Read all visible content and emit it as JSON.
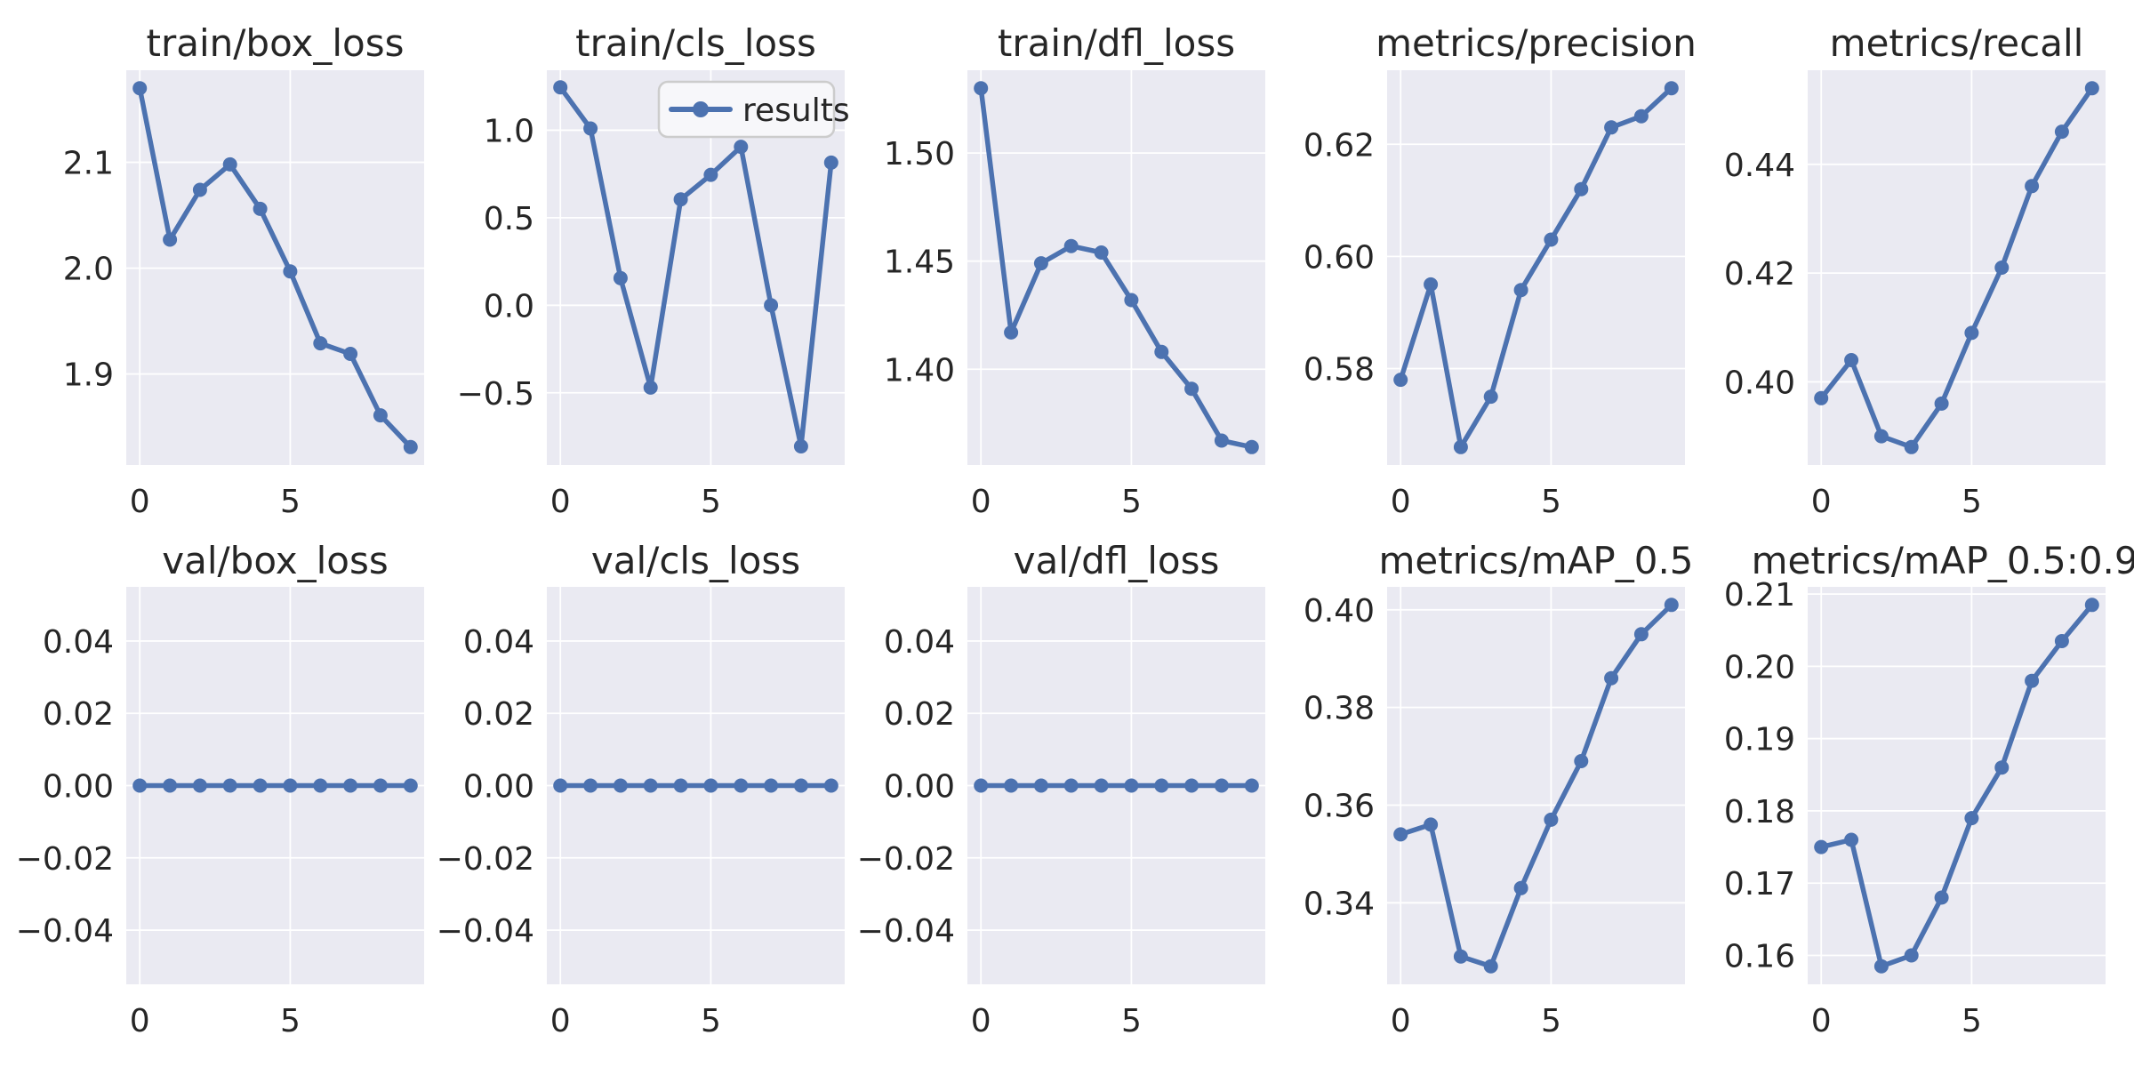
{
  "figure": {
    "colors": {
      "background": "#ffffff",
      "axes_background": "#eaeaf2",
      "grid": "#ffffff",
      "line": "#4c72b0",
      "marker": "#4c72b0",
      "text": "#262626",
      "legend_face": "#f7f7fa",
      "legend_edge": "#cccccc"
    },
    "legend": {
      "label": "results"
    }
  },
  "chart_data": [
    {
      "type": "line",
      "title": "train/box_loss",
      "legend": false,
      "x": [
        0,
        1,
        2,
        3,
        4,
        5,
        6,
        7,
        8,
        9
      ],
      "y": [
        2.17,
        2.027,
        2.074,
        2.098,
        2.056,
        1.997,
        1.929,
        1.919,
        1.861,
        1.831
      ],
      "xlim": [
        -0.45,
        9.45
      ],
      "ylim": [
        1.814,
        2.187
      ],
      "xticks": [
        {
          "v": 0,
          "label": "0"
        },
        {
          "v": 5,
          "label": "5"
        }
      ],
      "yticks": [
        {
          "v": 1.9,
          "label": "1.9"
        },
        {
          "v": 2.0,
          "label": "2.0"
        },
        {
          "v": 2.1,
          "label": "2.1"
        }
      ]
    },
    {
      "type": "line",
      "title": "train/cls_loss",
      "legend": true,
      "x": [
        0,
        1,
        2,
        3,
        4,
        5,
        6,
        7,
        8,
        9
      ],
      "y": [
        1.245,
        1.01,
        0.155,
        -0.47,
        0.605,
        0.745,
        0.905,
        0.0,
        -0.806,
        0.815
      ],
      "xlim": [
        -0.45,
        9.45
      ],
      "ylim": [
        -0.9125,
        1.3425
      ],
      "xticks": [
        {
          "v": 0,
          "label": "0"
        },
        {
          "v": 5,
          "label": "5"
        }
      ],
      "yticks": [
        {
          "v": -0.5,
          "label": "−0.5"
        },
        {
          "v": 0.0,
          "label": "0.0"
        },
        {
          "v": 0.5,
          "label": "0.5"
        },
        {
          "v": 1.0,
          "label": "1.0"
        }
      ]
    },
    {
      "type": "line",
      "title": "train/dfl_loss",
      "legend": false,
      "x": [
        0,
        1,
        2,
        3,
        4,
        5,
        6,
        7,
        8,
        9
      ],
      "y": [
        1.53,
        1.417,
        1.449,
        1.457,
        1.454,
        1.432,
        1.408,
        1.391,
        1.367,
        1.364
      ],
      "xlim": [
        -0.45,
        9.45
      ],
      "ylim": [
        1.3557,
        1.5383
      ],
      "xticks": [
        {
          "v": 0,
          "label": "0"
        },
        {
          "v": 5,
          "label": "5"
        }
      ],
      "yticks": [
        {
          "v": 1.4,
          "label": "1.40"
        },
        {
          "v": 1.45,
          "label": "1.45"
        },
        {
          "v": 1.5,
          "label": "1.50"
        }
      ]
    },
    {
      "type": "line",
      "title": "metrics/precision",
      "legend": false,
      "x": [
        0,
        1,
        2,
        3,
        4,
        5,
        6,
        7,
        8,
        9
      ],
      "y": [
        0.578,
        0.595,
        0.566,
        0.575,
        0.594,
        0.603,
        0.612,
        0.623,
        0.625,
        0.63
      ],
      "xlim": [
        -0.45,
        9.45
      ],
      "ylim": [
        0.5628,
        0.6332
      ],
      "xticks": [
        {
          "v": 0,
          "label": "0"
        },
        {
          "v": 5,
          "label": "5"
        }
      ],
      "yticks": [
        {
          "v": 0.58,
          "label": "0.58"
        },
        {
          "v": 0.6,
          "label": "0.60"
        },
        {
          "v": 0.62,
          "label": "0.62"
        }
      ]
    },
    {
      "type": "line",
      "title": "metrics/recall",
      "legend": false,
      "x": [
        0,
        1,
        2,
        3,
        4,
        5,
        6,
        7,
        8,
        9
      ],
      "y": [
        0.397,
        0.404,
        0.39,
        0.388,
        0.396,
        0.409,
        0.421,
        0.436,
        0.446,
        0.454
      ],
      "xlim": [
        -0.45,
        9.45
      ],
      "ylim": [
        0.3847,
        0.4573
      ],
      "xticks": [
        {
          "v": 0,
          "label": "0"
        },
        {
          "v": 5,
          "label": "5"
        }
      ],
      "yticks": [
        {
          "v": 0.4,
          "label": "0.40"
        },
        {
          "v": 0.42,
          "label": "0.42"
        },
        {
          "v": 0.44,
          "label": "0.44"
        }
      ]
    },
    {
      "type": "line",
      "title": "val/box_loss",
      "legend": false,
      "x": [
        0,
        1,
        2,
        3,
        4,
        5,
        6,
        7,
        8,
        9
      ],
      "y": [
        0,
        0,
        0,
        0,
        0,
        0,
        0,
        0,
        0,
        0
      ],
      "xlim": [
        -0.45,
        9.45
      ],
      "ylim": [
        -0.055,
        0.055
      ],
      "xticks": [
        {
          "v": 0,
          "label": "0"
        },
        {
          "v": 5,
          "label": "5"
        }
      ],
      "yticks": [
        {
          "v": -0.04,
          "label": "−0.04"
        },
        {
          "v": -0.02,
          "label": "−0.02"
        },
        {
          "v": 0.0,
          "label": "0.00"
        },
        {
          "v": 0.02,
          "label": "0.02"
        },
        {
          "v": 0.04,
          "label": "0.04"
        }
      ]
    },
    {
      "type": "line",
      "title": "val/cls_loss",
      "legend": false,
      "x": [
        0,
        1,
        2,
        3,
        4,
        5,
        6,
        7,
        8,
        9
      ],
      "y": [
        0,
        0,
        0,
        0,
        0,
        0,
        0,
        0,
        0,
        0
      ],
      "xlim": [
        -0.45,
        9.45
      ],
      "ylim": [
        -0.055,
        0.055
      ],
      "xticks": [
        {
          "v": 0,
          "label": "0"
        },
        {
          "v": 5,
          "label": "5"
        }
      ],
      "yticks": [
        {
          "v": -0.04,
          "label": "−0.04"
        },
        {
          "v": -0.02,
          "label": "−0.02"
        },
        {
          "v": 0.0,
          "label": "0.00"
        },
        {
          "v": 0.02,
          "label": "0.02"
        },
        {
          "v": 0.04,
          "label": "0.04"
        }
      ]
    },
    {
      "type": "line",
      "title": "val/dfl_loss",
      "legend": false,
      "x": [
        0,
        1,
        2,
        3,
        4,
        5,
        6,
        7,
        8,
        9
      ],
      "y": [
        0,
        0,
        0,
        0,
        0,
        0,
        0,
        0,
        0,
        0
      ],
      "xlim": [
        -0.45,
        9.45
      ],
      "ylim": [
        -0.055,
        0.055
      ],
      "xticks": [
        {
          "v": 0,
          "label": "0"
        },
        {
          "v": 5,
          "label": "5"
        }
      ],
      "yticks": [
        {
          "v": -0.04,
          "label": "−0.04"
        },
        {
          "v": -0.02,
          "label": "−0.02"
        },
        {
          "v": 0.0,
          "label": "0.00"
        },
        {
          "v": 0.02,
          "label": "0.02"
        },
        {
          "v": 0.04,
          "label": "0.04"
        }
      ]
    },
    {
      "type": "line",
      "title": "metrics/mAP_0.5",
      "legend": false,
      "x": [
        0,
        1,
        2,
        3,
        4,
        5,
        6,
        7,
        8,
        9
      ],
      "y": [
        0.354,
        0.356,
        0.329,
        0.327,
        0.343,
        0.357,
        0.369,
        0.386,
        0.395,
        0.401
      ],
      "xlim": [
        -0.45,
        9.45
      ],
      "ylim": [
        0.3233,
        0.4047
      ],
      "xticks": [
        {
          "v": 0,
          "label": "0"
        },
        {
          "v": 5,
          "label": "5"
        }
      ],
      "yticks": [
        {
          "v": 0.34,
          "label": "0.34"
        },
        {
          "v": 0.36,
          "label": "0.36"
        },
        {
          "v": 0.38,
          "label": "0.38"
        },
        {
          "v": 0.4,
          "label": "0.40"
        }
      ]
    },
    {
      "type": "line",
      "title": "metrics/mAP_0.5:0.95",
      "legend": false,
      "x": [
        0,
        1,
        2,
        3,
        4,
        5,
        6,
        7,
        8,
        9
      ],
      "y": [
        0.175,
        0.176,
        0.1585,
        0.16,
        0.168,
        0.179,
        0.186,
        0.198,
        0.2035,
        0.2085
      ],
      "xlim": [
        -0.45,
        9.45
      ],
      "ylim": [
        0.156,
        0.211
      ],
      "xticks": [
        {
          "v": 0,
          "label": "0"
        },
        {
          "v": 5,
          "label": "5"
        }
      ],
      "yticks": [
        {
          "v": 0.16,
          "label": "0.16"
        },
        {
          "v": 0.17,
          "label": "0.17"
        },
        {
          "v": 0.18,
          "label": "0.18"
        },
        {
          "v": 0.19,
          "label": "0.19"
        },
        {
          "v": 0.2,
          "label": "0.20"
        },
        {
          "v": 0.21,
          "label": "0.21"
        }
      ]
    }
  ]
}
